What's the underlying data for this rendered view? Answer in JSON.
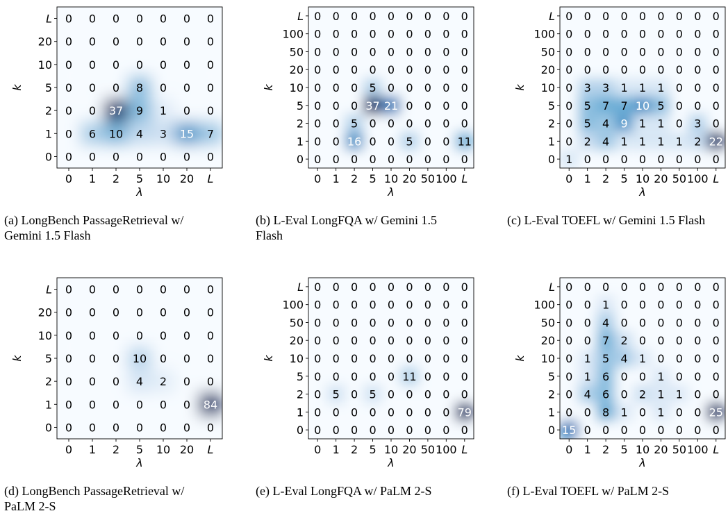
{
  "chart_data": [
    {
      "type": "heatmap",
      "caption": "(a) LongBench PassageRetrieval w/ Gemini 1.5 Flash",
      "xlabel": "λ",
      "ylabel": "k",
      "x_ticks": [
        "0",
        "1",
        "2",
        "5",
        "10",
        "20",
        "L"
      ],
      "y_ticks": [
        "L",
        "20",
        "10",
        "5",
        "2",
        "1",
        "0"
      ],
      "values": [
        [
          0,
          0,
          0,
          0,
          0,
          0,
          0
        ],
        [
          0,
          0,
          0,
          0,
          0,
          0,
          0
        ],
        [
          0,
          0,
          0,
          0,
          0,
          0,
          0
        ],
        [
          0,
          0,
          0,
          8,
          0,
          0,
          0
        ],
        [
          0,
          0,
          37,
          9,
          1,
          0,
          0
        ],
        [
          0,
          6,
          10,
          4,
          3,
          15,
          7
        ],
        [
          0,
          0,
          0,
          0,
          0,
          0,
          0
        ]
      ],
      "colormap": "Blues"
    },
    {
      "type": "heatmap",
      "caption": "(b) L-Eval LongFQA w/ Gemini 1.5 Flash",
      "xlabel": "λ",
      "ylabel": "k",
      "x_ticks": [
        "0",
        "1",
        "2",
        "5",
        "10",
        "20",
        "50",
        "100",
        "L"
      ],
      "y_ticks": [
        "L",
        "100",
        "50",
        "20",
        "10",
        "5",
        "2",
        "1",
        "0"
      ],
      "values": [
        [
          0,
          0,
          0,
          0,
          0,
          0,
          0,
          0,
          0
        ],
        [
          0,
          0,
          0,
          0,
          0,
          0,
          0,
          0,
          0
        ],
        [
          0,
          0,
          0,
          0,
          0,
          0,
          0,
          0,
          0
        ],
        [
          0,
          0,
          0,
          0,
          0,
          0,
          0,
          0,
          0
        ],
        [
          0,
          0,
          0,
          5,
          0,
          0,
          0,
          0,
          0
        ],
        [
          0,
          0,
          0,
          37,
          21,
          0,
          0,
          0,
          0
        ],
        [
          0,
          0,
          5,
          0,
          0,
          0,
          0,
          0,
          0
        ],
        [
          0,
          0,
          16,
          0,
          0,
          5,
          0,
          0,
          11
        ],
        [
          0,
          0,
          0,
          0,
          0,
          0,
          0,
          0,
          0
        ]
      ],
      "colormap": "Blues"
    },
    {
      "type": "heatmap",
      "caption": "(c) L-Eval TOEFL w/ Gemini 1.5 Flash",
      "xlabel": "λ",
      "ylabel": "k",
      "x_ticks": [
        "0",
        "1",
        "2",
        "5",
        "10",
        "20",
        "50",
        "100",
        "L"
      ],
      "y_ticks": [
        "L",
        "100",
        "50",
        "20",
        "10",
        "5",
        "2",
        "1",
        "0"
      ],
      "values": [
        [
          0,
          0,
          0,
          0,
          0,
          0,
          0,
          0,
          0
        ],
        [
          0,
          0,
          0,
          0,
          0,
          0,
          0,
          0,
          0
        ],
        [
          0,
          0,
          0,
          0,
          0,
          0,
          0,
          0,
          0
        ],
        [
          0,
          0,
          0,
          0,
          0,
          0,
          0,
          0,
          0
        ],
        [
          0,
          3,
          3,
          1,
          1,
          1,
          0,
          0,
          0
        ],
        [
          0,
          5,
          7,
          7,
          10,
          5,
          0,
          0,
          0
        ],
        [
          0,
          5,
          4,
          9,
          1,
          1,
          0,
          3,
          0
        ],
        [
          0,
          2,
          4,
          1,
          1,
          1,
          1,
          2,
          22
        ],
        [
          1,
          0,
          0,
          0,
          0,
          0,
          0,
          0,
          0
        ]
      ],
      "colormap": "Blues"
    },
    {
      "type": "heatmap",
      "caption": "(d) LongBench PassageRetrieval w/ PaLM 2-S",
      "xlabel": "λ",
      "ylabel": "k",
      "x_ticks": [
        "0",
        "1",
        "2",
        "5",
        "10",
        "20",
        "L"
      ],
      "y_ticks": [
        "L",
        "20",
        "10",
        "5",
        "2",
        "1",
        "0"
      ],
      "values": [
        [
          0,
          0,
          0,
          0,
          0,
          0,
          0
        ],
        [
          0,
          0,
          0,
          0,
          0,
          0,
          0
        ],
        [
          0,
          0,
          0,
          0,
          0,
          0,
          0
        ],
        [
          0,
          0,
          0,
          10,
          0,
          0,
          0
        ],
        [
          0,
          0,
          0,
          4,
          2,
          0,
          0
        ],
        [
          0,
          0,
          0,
          0,
          0,
          0,
          84
        ],
        [
          0,
          0,
          0,
          0,
          0,
          0,
          0
        ]
      ],
      "colormap": "Blues"
    },
    {
      "type": "heatmap",
      "caption": "(e) L-Eval LongFQA w/ PaLM 2-S",
      "xlabel": "λ",
      "ylabel": "k",
      "x_ticks": [
        "0",
        "1",
        "2",
        "5",
        "10",
        "20",
        "50",
        "100",
        "L"
      ],
      "y_ticks": [
        "L",
        "100",
        "50",
        "20",
        "10",
        "5",
        "2",
        "1",
        "0"
      ],
      "values": [
        [
          0,
          0,
          0,
          0,
          0,
          0,
          0,
          0,
          0
        ],
        [
          0,
          0,
          0,
          0,
          0,
          0,
          0,
          0,
          0
        ],
        [
          0,
          0,
          0,
          0,
          0,
          0,
          0,
          0,
          0
        ],
        [
          0,
          0,
          0,
          0,
          0,
          0,
          0,
          0,
          0
        ],
        [
          0,
          0,
          0,
          0,
          0,
          0,
          0,
          0,
          0
        ],
        [
          0,
          0,
          0,
          0,
          0,
          11,
          0,
          0,
          0
        ],
        [
          0,
          5,
          0,
          5,
          0,
          0,
          0,
          0,
          0
        ],
        [
          0,
          0,
          0,
          0,
          0,
          0,
          0,
          0,
          79
        ],
        [
          0,
          0,
          0,
          0,
          0,
          0,
          0,
          0,
          0
        ]
      ],
      "colormap": "Blues"
    },
    {
      "type": "heatmap",
      "caption": "(f) L-Eval TOEFL w/ PaLM 2-S",
      "xlabel": "λ",
      "ylabel": "k",
      "x_ticks": [
        "0",
        "1",
        "2",
        "5",
        "10",
        "20",
        "50",
        "100",
        "L"
      ],
      "y_ticks": [
        "L",
        "100",
        "50",
        "20",
        "10",
        "5",
        "2",
        "1",
        "0"
      ],
      "values": [
        [
          0,
          0,
          0,
          0,
          0,
          0,
          0,
          0,
          0
        ],
        [
          0,
          0,
          1,
          0,
          0,
          0,
          0,
          0,
          0
        ],
        [
          0,
          0,
          4,
          0,
          0,
          0,
          0,
          0,
          0
        ],
        [
          0,
          0,
          7,
          2,
          0,
          0,
          0,
          0,
          0
        ],
        [
          0,
          1,
          5,
          4,
          1,
          0,
          0,
          0,
          0
        ],
        [
          0,
          1,
          6,
          0,
          0,
          1,
          0,
          0,
          0
        ],
        [
          0,
          4,
          6,
          0,
          2,
          1,
          1,
          0,
          0
        ],
        [
          0,
          0,
          8,
          1,
          0,
          1,
          0,
          0,
          25
        ],
        [
          15,
          0,
          0,
          0,
          0,
          0,
          0,
          0,
          0
        ]
      ],
      "colormap": "Blues"
    }
  ]
}
